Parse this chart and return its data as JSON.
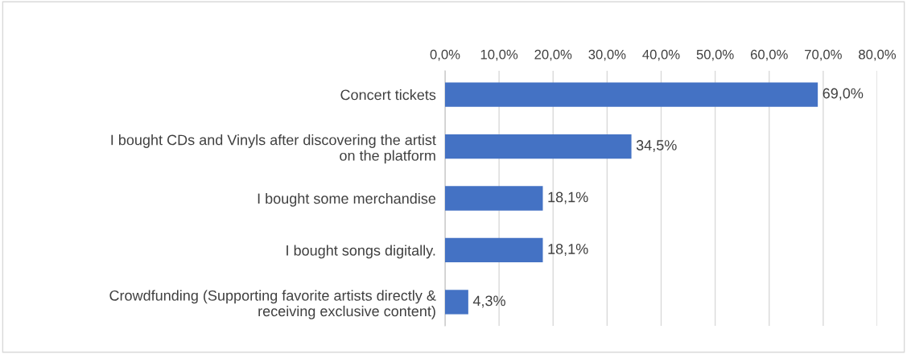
{
  "chart_data": {
    "type": "bar",
    "orientation": "horizontal",
    "categories": [
      "Concert tickets",
      "I bought CDs and Vinyls after discovering the artist on the platform",
      "I bought some merchandise",
      "I bought songs digitally.",
      "Crowdfunding (Supporting favorite artists directly & receiving exclusive content)"
    ],
    "values": [
      69.0,
      34.5,
      18.1,
      18.1,
      4.3
    ],
    "value_labels": [
      "69,0%",
      "34,5%",
      "18,1%",
      "18,1%",
      "4,3%"
    ],
    "color": "#4472c4",
    "xlim": [
      0,
      80
    ],
    "xticks": [
      {
        "value": 0,
        "label": "0,0%"
      },
      {
        "value": 10,
        "label": "10,0%"
      },
      {
        "value": 20,
        "label": "20,0%"
      },
      {
        "value": 30,
        "label": "30,0%"
      },
      {
        "value": 40,
        "label": "40,0%"
      },
      {
        "value": 50,
        "label": "50,0%"
      },
      {
        "value": 60,
        "label": "60,0%"
      },
      {
        "value": 70,
        "label": "70,0%"
      },
      {
        "value": 80,
        "label": "80,0%"
      }
    ],
    "grid": "x",
    "legend": false
  }
}
